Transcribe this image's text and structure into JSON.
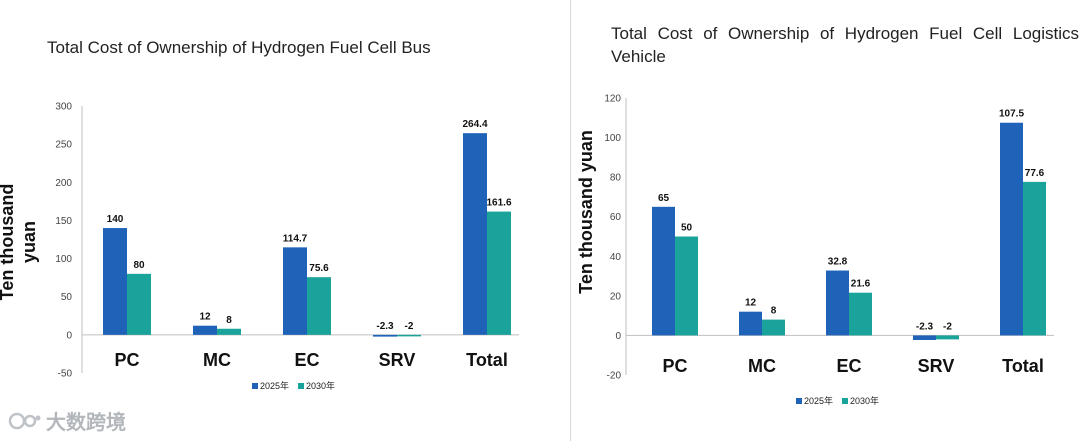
{
  "watermark": {
    "text": "大数跨境",
    "icon": "logo-icon"
  },
  "colors": {
    "series_2025": "#1f63b8",
    "series_2030": "#1aa39a"
  },
  "chart_data": [
    {
      "type": "bar",
      "title": "Total Cost of Ownership of Hydrogen Fuel Cell Bus",
      "ylabel": "Ten thousand yuan",
      "xlabel": "",
      "ylim": [
        -50,
        300
      ],
      "yticks": [
        "300",
        "250",
        "200",
        "150",
        "100",
        "50",
        "0",
        "-50"
      ],
      "ytick_values": [
        300,
        250,
        200,
        150,
        100,
        50,
        0,
        -50
      ],
      "categories": [
        "PC",
        "MC",
        "EC",
        "SRV",
        "Total"
      ],
      "series": [
        {
          "name": "2025年",
          "values": [
            140,
            12,
            114.7,
            -2.3,
            264.4
          ],
          "labels": [
            "140",
            "12",
            "114.7",
            "-2.3",
            "264.4"
          ]
        },
        {
          "name": "2030年",
          "values": [
            80,
            8,
            75.6,
            -2,
            161.6
          ],
          "labels": [
            "80",
            "8",
            "75.6",
            "-2",
            "161.6"
          ]
        }
      ],
      "legend": "bottom-center",
      "grid": false
    },
    {
      "type": "bar",
      "title": "Total Cost of Ownership of Hydrogen Fuel Cell Logistics Vehicle",
      "ylabel": "Ten thousand yuan",
      "xlabel": "",
      "ylim": [
        -20,
        120
      ],
      "yticks": [
        "120",
        "100",
        "80",
        "60",
        "40",
        "20",
        "0",
        "-20"
      ],
      "ytick_values": [
        120,
        100,
        80,
        60,
        40,
        20,
        0,
        -20
      ],
      "categories": [
        "PC",
        "MC",
        "EC",
        "SRV",
        "Total"
      ],
      "series": [
        {
          "name": "2025年",
          "values": [
            65,
            12,
            32.8,
            -2.3,
            107.5
          ],
          "labels": [
            "65",
            "12",
            "32.8",
            "-2.3",
            "107.5"
          ]
        },
        {
          "name": "2030年",
          "values": [
            50,
            8,
            21.6,
            -2,
            77.6
          ],
          "labels": [
            "50",
            "8",
            "21.6",
            "-2",
            "77.6"
          ]
        }
      ],
      "legend": "bottom-center",
      "grid": false
    }
  ]
}
